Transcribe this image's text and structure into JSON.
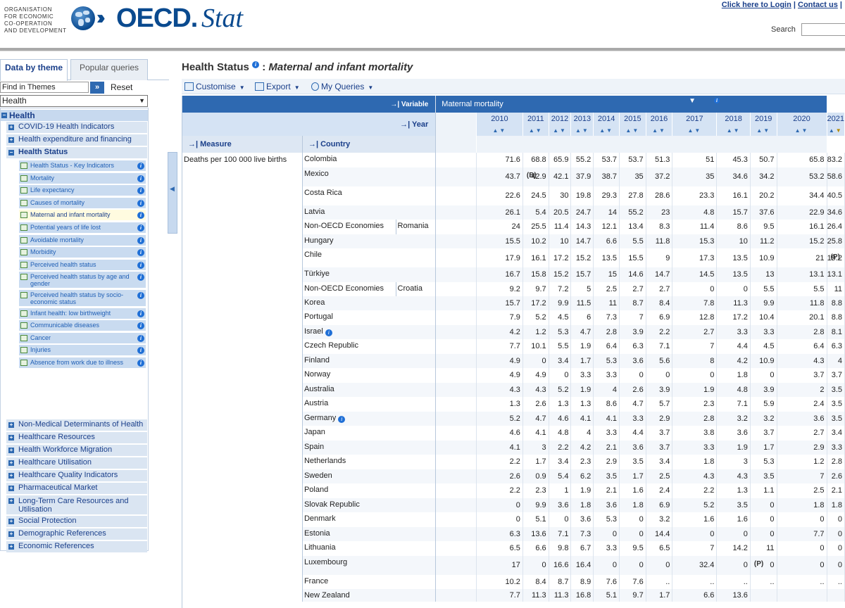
{
  "header": {
    "org_lines": [
      "ORGANISATION",
      "FOR ECONOMIC",
      "CO-OPERATION",
      "AND DEVELOPMENT"
    ],
    "brand_main": "OECD.",
    "brand_sub": "Stat",
    "login_link": "Click here to Login",
    "contact_link": "Contact us",
    "search_label": "Search",
    "search_value": ""
  },
  "sidebar": {
    "tabs": [
      "Data by theme",
      "Popular queries"
    ],
    "find_placeholder": "Find in Themes",
    "find_button": "»",
    "reset_label": "Reset",
    "theme_selected": "Health",
    "root_label": "Health",
    "items": [
      {
        "label": "COVID-19 Health Indicators",
        "bold": false
      },
      {
        "label": "Health expenditure and financing",
        "bold": false
      },
      {
        "label": "Health Status",
        "bold": true
      }
    ],
    "subitems": [
      "Health Status - Key Indicators",
      "Mortality",
      "Life expectancy",
      "Causes of mortality",
      "Maternal and infant mortality",
      "Potential years of life lost",
      "Avoidable mortality",
      "Morbidity",
      "Perceived health status",
      "Perceived health status by age and gender",
      "Perceived health status by socio-economic status",
      "Infant health: low birthweight",
      "Communicable diseases",
      "Cancer",
      "Injuries",
      "Absence from work due to illness"
    ],
    "items_after": [
      "Non-Medical Determinants of Health",
      "Healthcare Resources",
      "Health Workforce Migration",
      "Healthcare Utilisation",
      "Healthcare Quality Indicators",
      "Pharmaceutical Market",
      "Long-Term Care Resources and Utilisation",
      "Social Protection",
      "Demographic References",
      "Economic References"
    ]
  },
  "main": {
    "title_prefix": "Health Status",
    "title_sep": ":",
    "title_dataset": "Maternal and infant mortality",
    "toolbar": [
      "Customise",
      "Export",
      "My Queries"
    ],
    "variable_label": "Variable",
    "variable_value": "Maternal mortality",
    "year_label": "Year",
    "measure_label": "Measure",
    "country_label": "Country",
    "measure_value": "Deaths per 100 000 live births",
    "years": [
      "2010",
      "2011",
      "2012",
      "2013",
      "2014",
      "2015",
      "2016",
      "2017",
      "2018",
      "2019",
      "2020",
      "2021"
    ],
    "rows": [
      {
        "country": "Colombia",
        "sub": "",
        "info": false,
        "values": [
          "71.6",
          "68.8",
          "65.9",
          "55.2",
          "53.7",
          "53.7",
          "51.3",
          "51",
          "45.3",
          "50.7",
          "65.8",
          "83.2"
        ],
        "flags": {}
      },
      {
        "country": "Mexico",
        "sub": "",
        "info": false,
        "values": [
          "43.7",
          "42.9",
          "42.1",
          "37.9",
          "38.7",
          "35",
          "37.2",
          "35",
          "34.6",
          "34.2",
          "53.2",
          "58.6"
        ],
        "flags": {
          "1": "(B)"
        }
      },
      {
        "country": "Costa Rica",
        "sub": "",
        "info": false,
        "values": [
          "22.6",
          "24.5",
          "30",
          "19.8",
          "29.3",
          "27.8",
          "28.6",
          "23.3",
          "16.1",
          "20.2",
          "34.4",
          "40.5"
        ],
        "flags": {}
      },
      {
        "country": "Latvia",
        "sub": "",
        "info": false,
        "values": [
          "26.1",
          "5.4",
          "20.5",
          "24.7",
          "14",
          "55.2",
          "23",
          "4.8",
          "15.7",
          "37.6",
          "22.9",
          "34.6"
        ],
        "flags": {}
      },
      {
        "country": "Non-OECD Economies",
        "sub": "Romania",
        "info": false,
        "values": [
          "24",
          "25.5",
          "11.4",
          "14.3",
          "12.1",
          "13.4",
          "8.3",
          "11.4",
          "8.6",
          "9.5",
          "16.1",
          "26.4"
        ],
        "flags": {}
      },
      {
        "country": "Hungary",
        "sub": "",
        "info": false,
        "values": [
          "15.5",
          "10.2",
          "10",
          "14.7",
          "6.6",
          "5.5",
          "11.8",
          "15.3",
          "10",
          "11.2",
          "15.2",
          "25.8"
        ],
        "flags": {}
      },
      {
        "country": "Chile",
        "sub": "",
        "info": false,
        "values": [
          "17.9",
          "16.1",
          "17.2",
          "15.2",
          "13.5",
          "15.5",
          "9",
          "17.3",
          "13.5",
          "10.9",
          "21",
          "19.2"
        ],
        "flags": {
          "11": "(P)"
        }
      },
      {
        "country": "Türkiye",
        "sub": "",
        "info": false,
        "values": [
          "16.7",
          "15.8",
          "15.2",
          "15.7",
          "15",
          "14.6",
          "14.7",
          "14.5",
          "13.5",
          "13",
          "13.1",
          "13.1"
        ],
        "flags": {}
      },
      {
        "country": "Non-OECD Economies",
        "sub": "Croatia",
        "info": false,
        "values": [
          "9.2",
          "9.7",
          "7.2",
          "5",
          "2.5",
          "2.7",
          "2.7",
          "0",
          "0",
          "5.5",
          "5.5",
          "11"
        ],
        "flags": {}
      },
      {
        "country": "Korea",
        "sub": "",
        "info": false,
        "values": [
          "15.7",
          "17.2",
          "9.9",
          "11.5",
          "11",
          "8.7",
          "8.4",
          "7.8",
          "11.3",
          "9.9",
          "11.8",
          "8.8"
        ],
        "flags": {}
      },
      {
        "country": "Portugal",
        "sub": "",
        "info": false,
        "values": [
          "7.9",
          "5.2",
          "4.5",
          "6",
          "7.3",
          "7",
          "6.9",
          "12.8",
          "17.2",
          "10.4",
          "20.1",
          "8.8"
        ],
        "flags": {}
      },
      {
        "country": "Israel",
        "sub": "",
        "info": true,
        "values": [
          "4.2",
          "1.2",
          "5.3",
          "4.7",
          "2.8",
          "3.9",
          "2.2",
          "2.7",
          "3.3",
          "3.3",
          "2.8",
          "8.1"
        ],
        "flags": {}
      },
      {
        "country": "Czech Republic",
        "sub": "",
        "info": false,
        "values": [
          "7.7",
          "10.1",
          "5.5",
          "1.9",
          "6.4",
          "6.3",
          "7.1",
          "7",
          "4.4",
          "4.5",
          "6.4",
          "6.3"
        ],
        "flags": {}
      },
      {
        "country": "Finland",
        "sub": "",
        "info": false,
        "values": [
          "4.9",
          "0",
          "3.4",
          "1.7",
          "5.3",
          "3.6",
          "5.6",
          "8",
          "4.2",
          "10.9",
          "4.3",
          "4"
        ],
        "flags": {}
      },
      {
        "country": "Norway",
        "sub": "",
        "info": false,
        "values": [
          "4.9",
          "4.9",
          "0",
          "3.3",
          "3.3",
          "0",
          "0",
          "0",
          "1.8",
          "0",
          "3.7",
          "3.7"
        ],
        "flags": {}
      },
      {
        "country": "Australia",
        "sub": "",
        "info": false,
        "values": [
          "4.3",
          "4.3",
          "5.2",
          "1.9",
          "4",
          "2.6",
          "3.9",
          "1.9",
          "4.8",
          "3.9",
          "2",
          "3.5"
        ],
        "flags": {}
      },
      {
        "country": "Austria",
        "sub": "",
        "info": false,
        "values": [
          "1.3",
          "2.6",
          "1.3",
          "1.3",
          "8.6",
          "4.7",
          "5.7",
          "2.3",
          "7.1",
          "5.9",
          "2.4",
          "3.5"
        ],
        "flags": {}
      },
      {
        "country": "Germany",
        "sub": "",
        "info": true,
        "values": [
          "5.2",
          "4.7",
          "4.6",
          "4.1",
          "4.1",
          "3.3",
          "2.9",
          "2.8",
          "3.2",
          "3.2",
          "3.6",
          "3.5"
        ],
        "flags": {}
      },
      {
        "country": "Japan",
        "sub": "",
        "info": false,
        "values": [
          "4.6",
          "4.1",
          "4.8",
          "4",
          "3.3",
          "4.4",
          "3.7",
          "3.8",
          "3.6",
          "3.7",
          "2.7",
          "3.4"
        ],
        "flags": {}
      },
      {
        "country": "Spain",
        "sub": "",
        "info": false,
        "values": [
          "4.1",
          "3",
          "2.2",
          "4.2",
          "2.1",
          "3.6",
          "3.7",
          "3.3",
          "1.9",
          "1.7",
          "2.9",
          "3.3"
        ],
        "flags": {}
      },
      {
        "country": "Netherlands",
        "sub": "",
        "info": false,
        "values": [
          "2.2",
          "1.7",
          "3.4",
          "2.3",
          "2.9",
          "3.5",
          "3.4",
          "1.8",
          "3",
          "5.3",
          "1.2",
          "2.8"
        ],
        "flags": {}
      },
      {
        "country": "Sweden",
        "sub": "",
        "info": false,
        "values": [
          "2.6",
          "0.9",
          "5.4",
          "6.2",
          "3.5",
          "1.7",
          "2.5",
          "4.3",
          "4.3",
          "3.5",
          "7",
          "2.6"
        ],
        "flags": {}
      },
      {
        "country": "Poland",
        "sub": "",
        "info": false,
        "values": [
          "2.2",
          "2.3",
          "1",
          "1.9",
          "2.1",
          "1.6",
          "2.4",
          "2.2",
          "1.3",
          "1.1",
          "2.5",
          "2.1"
        ],
        "flags": {}
      },
      {
        "country": "Slovak Republic",
        "sub": "",
        "info": false,
        "values": [
          "0",
          "9.9",
          "3.6",
          "1.8",
          "3.6",
          "1.8",
          "6.9",
          "5.2",
          "3.5",
          "0",
          "1.8",
          "1.8"
        ],
        "flags": {}
      },
      {
        "country": "Denmark",
        "sub": "",
        "info": false,
        "values": [
          "0",
          "5.1",
          "0",
          "3.6",
          "5.3",
          "0",
          "3.2",
          "1.6",
          "1.6",
          "0",
          "0",
          "0"
        ],
        "flags": {}
      },
      {
        "country": "Estonia",
        "sub": "",
        "info": false,
        "values": [
          "6.3",
          "13.6",
          "7.1",
          "7.3",
          "0",
          "0",
          "14.4",
          "0",
          "0",
          "0",
          "7.7",
          "0"
        ],
        "flags": {}
      },
      {
        "country": "Lithuania",
        "sub": "",
        "info": false,
        "values": [
          "6.5",
          "6.6",
          "9.8",
          "6.7",
          "3.3",
          "9.5",
          "6.5",
          "7",
          "14.2",
          "11",
          "0",
          "0"
        ],
        "flags": {}
      },
      {
        "country": "Luxembourg",
        "sub": "",
        "info": false,
        "values": [
          "17",
          "0",
          "16.6",
          "16.4",
          "0",
          "0",
          "0",
          "32.4",
          "0",
          "0",
          "0",
          "0"
        ],
        "flags": {
          "9": "(P)"
        }
      },
      {
        "country": "France",
        "sub": "",
        "info": false,
        "values": [
          "10.2",
          "8.4",
          "8.7",
          "8.9",
          "7.6",
          "7.6",
          "..",
          "..",
          "..",
          "..",
          "..",
          ".."
        ],
        "flags": {}
      },
      {
        "country": "New Zealand",
        "sub": "",
        "info": false,
        "values": [
          "7.7",
          "11.3",
          "11.3",
          "16.8",
          "5.1",
          "9.7",
          "1.7",
          "6.6",
          "13.6",
          "",
          "",
          ""
        ],
        "flags": {}
      }
    ]
  }
}
